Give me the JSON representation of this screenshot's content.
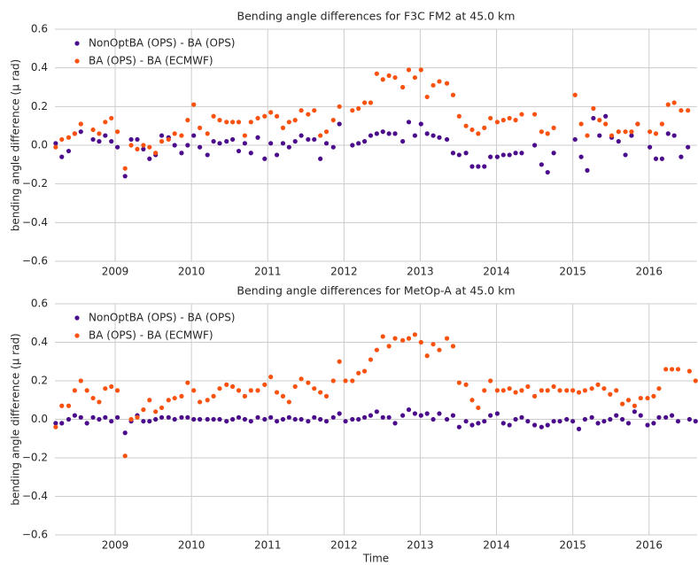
{
  "chart_data": [
    {
      "type": "scatter",
      "title": "Bending angle differences for F3C FM2 at 45.0 km",
      "ylabel": "bending angle difference (μ rad)",
      "xlim": [
        2008.21,
        2016.63
      ],
      "xticks": [
        2009,
        2010,
        2011,
        2012,
        2013,
        2014,
        2015,
        2016
      ],
      "ylim": [
        -0.6,
        0.6
      ],
      "yticks": [
        {
          "value": -0.6,
          "label": "−0.6"
        },
        {
          "value": -0.4,
          "label": "−0.4"
        },
        {
          "value": -0.2,
          "label": "−0.2"
        },
        {
          "value": 0,
          "label": "0.0"
        },
        0.2,
        0.4,
        0.6
      ],
      "grid": true,
      "legend": "upper left",
      "x": [
        2008.22,
        2008.3,
        2008.39,
        2008.47,
        2008.55,
        2008.71,
        2008.79,
        2008.87,
        2008.95,
        2009.03,
        2009.13,
        2009.21,
        2009.29,
        2009.37,
        2009.45,
        2009.53,
        2009.61,
        2009.7,
        2009.78,
        2009.87,
        2009.95,
        2010.03,
        2010.11,
        2010.21,
        2010.29,
        2010.37,
        2010.46,
        2010.54,
        2010.62,
        2010.7,
        2010.78,
        2010.87,
        2010.96,
        2011.04,
        2011.12,
        2011.2,
        2011.28,
        2011.36,
        2011.44,
        2011.53,
        2011.61,
        2011.69,
        2011.77,
        2011.86,
        2011.94,
        2012.11,
        2012.19,
        2012.27,
        2012.35,
        2012.43,
        2012.51,
        2012.59,
        2012.67,
        2012.77,
        2012.85,
        2012.93,
        2013.01,
        2013.09,
        2013.17,
        2013.25,
        2013.35,
        2013.43,
        2013.51,
        2013.6,
        2013.68,
        2013.76,
        2013.84,
        2013.92,
        2014.01,
        2014.09,
        2014.17,
        2014.25,
        2014.33,
        2014.5,
        2014.59,
        2014.67,
        2014.75,
        2015.03,
        2015.11,
        2015.19,
        2015.27,
        2015.35,
        2015.43,
        2015.51,
        2015.6,
        2015.69,
        2015.77,
        2015.85,
        2016.01,
        2016.09,
        2016.17,
        2016.25,
        2016.33,
        2016.42,
        2016.51
      ],
      "series": [
        {
          "name": "NonOptBA (OPS) - BA (OPS)",
          "color": "#4b0c8c",
          "values": [
            0.01,
            -0.06,
            -0.03,
            0.06,
            0.07,
            0.03,
            0.02,
            0.05,
            0.02,
            -0.01,
            -0.16,
            0.03,
            0.03,
            -0.02,
            -0.07,
            -0.05,
            0.05,
            0.04,
            0,
            -0.04,
            0,
            0.05,
            -0.01,
            -0.05,
            0.02,
            0.01,
            0.02,
            0.03,
            -0.03,
            0.01,
            -0.04,
            0.04,
            -0.07,
            0.01,
            -0.05,
            0.01,
            -0.01,
            0.02,
            0.05,
            0.03,
            0.03,
            -0.07,
            0.01,
            -0.01,
            0.11,
            0,
            0.01,
            0.02,
            0.05,
            0.06,
            0.07,
            0.06,
            0.06,
            0.02,
            0.12,
            0.05,
            0.11,
            0.06,
            0.05,
            0.04,
            0.03,
            -0.04,
            -0.05,
            -0.04,
            -0.11,
            -0.11,
            -0.11,
            -0.06,
            -0.06,
            -0.05,
            -0.05,
            -0.04,
            -0.04,
            0,
            -0.1,
            -0.14,
            -0.04,
            0.03,
            -0.06,
            -0.13,
            0.14,
            0.05,
            0.15,
            0.04,
            0.02,
            -0.05,
            0.05,
            0.11,
            -0.01,
            -0.07,
            -0.07,
            0.06,
            0.05,
            -0.06,
            -0.01
          ]
        },
        {
          "name": "BA (OPS) - BA (ECMWF)",
          "color": "#f9520f",
          "values": [
            -0.01,
            0.03,
            0.04,
            0.06,
            0.11,
            0.08,
            0.06,
            0.12,
            0.14,
            0.07,
            -0.12,
            0,
            -0.02,
            0,
            -0.01,
            -0.04,
            0.02,
            0.03,
            0.06,
            0.05,
            0.13,
            0.21,
            0.09,
            0.06,
            0.15,
            0.13,
            0.12,
            0.12,
            0.12,
            0.05,
            0.12,
            0.14,
            0.15,
            0.17,
            0.15,
            0.09,
            0.12,
            0.13,
            0.18,
            0.16,
            0.18,
            0.05,
            0.07,
            0.13,
            0.2,
            0.18,
            0.19,
            0.22,
            0.22,
            0.37,
            0.34,
            0.36,
            0.35,
            0.3,
            0.39,
            0.35,
            0.39,
            0.25,
            0.31,
            0.33,
            0.32,
            0.26,
            0.15,
            0.1,
            0.08,
            0.06,
            0.09,
            0.14,
            0.12,
            0.13,
            0.14,
            0.13,
            0.16,
            0.16,
            0.07,
            0.06,
            0.09,
            0.26,
            0.11,
            0.05,
            0.19,
            0.13,
            0.11,
            0.05,
            0.07,
            0.07,
            0.07,
            0.11,
            0.07,
            0.06,
            0.11,
            0.21,
            0.22,
            0.18,
            0.18
          ]
        }
      ]
    },
    {
      "type": "scatter",
      "title": "Bending angle differences for MetOp-A at 45.0 km",
      "ylabel": "bending angle difference (μ rad)",
      "xlabel": "Time",
      "xlim": [
        2008.21,
        2016.63
      ],
      "xticks": [
        2009,
        2010,
        2011,
        2012,
        2013,
        2014,
        2015,
        2016
      ],
      "ylim": [
        -0.6,
        0.6
      ],
      "yticks": [
        {
          "value": -0.6,
          "label": "−0.6"
        },
        {
          "value": -0.4,
          "label": "−0.4"
        },
        {
          "value": -0.2,
          "label": "−0.2"
        },
        {
          "value": 0,
          "label": "0.0"
        },
        0.2,
        0.4,
        0.6
      ],
      "grid": true,
      "legend": "upper left",
      "x": [
        2008.22,
        2008.3,
        2008.39,
        2008.47,
        2008.55,
        2008.63,
        2008.71,
        2008.79,
        2008.87,
        2008.95,
        2009.03,
        2009.13,
        2009.21,
        2009.29,
        2009.37,
        2009.45,
        2009.53,
        2009.61,
        2009.7,
        2009.78,
        2009.87,
        2009.95,
        2010.03,
        2010.11,
        2010.21,
        2010.29,
        2010.37,
        2010.46,
        2010.54,
        2010.62,
        2010.7,
        2010.78,
        2010.87,
        2010.96,
        2011.04,
        2011.12,
        2011.2,
        2011.28,
        2011.36,
        2011.44,
        2011.53,
        2011.61,
        2011.69,
        2011.77,
        2011.86,
        2011.94,
        2012.02,
        2012.11,
        2012.19,
        2012.27,
        2012.35,
        2012.43,
        2012.51,
        2012.59,
        2012.67,
        2012.77,
        2012.85,
        2012.93,
        2013.01,
        2013.09,
        2013.17,
        2013.25,
        2013.35,
        2013.43,
        2013.51,
        2013.6,
        2013.68,
        2013.76,
        2013.84,
        2013.92,
        2014.01,
        2014.09,
        2014.17,
        2014.25,
        2014.33,
        2014.41,
        2014.5,
        2014.59,
        2014.67,
        2014.75,
        2014.83,
        2014.92,
        2015.0,
        2015.08,
        2015.16,
        2015.25,
        2015.33,
        2015.41,
        2015.49,
        2015.57,
        2015.65,
        2015.73,
        2015.81,
        2015.89,
        2015.98,
        2016.06,
        2016.13,
        2016.22,
        2016.3,
        2016.38,
        2016.53,
        2016.61
      ],
      "series": [
        {
          "name": "NonOptBA (OPS) - BA (OPS)",
          "color": "#4b0c8c",
          "values": [
            -0.02,
            -0.02,
            0,
            0.02,
            0.01,
            -0.02,
            0.01,
            0,
            0.01,
            -0.01,
            0.01,
            -0.07,
            -0.01,
            0.02,
            -0.01,
            -0.01,
            0,
            0.01,
            0.01,
            0,
            0.01,
            0.01,
            0,
            0,
            0,
            0,
            0,
            -0.01,
            0,
            0.01,
            0,
            -0.01,
            0.01,
            0,
            0.01,
            -0.01,
            0,
            0.01,
            0,
            0,
            -0.01,
            0.01,
            0,
            -0.01,
            0.01,
            0.03,
            -0.01,
            0,
            0,
            0.01,
            0.02,
            0.04,
            0.01,
            0.01,
            -0.02,
            0.02,
            0.05,
            0.03,
            0.02,
            0.03,
            0,
            0.03,
            0,
            0.02,
            -0.04,
            -0.01,
            -0.03,
            -0.02,
            -0.01,
            0.02,
            0.03,
            -0.02,
            -0.03,
            0,
            0.01,
            -0.01,
            -0.03,
            -0.04,
            -0.03,
            -0.01,
            -0.01,
            0,
            -0.01,
            -0.05,
            0,
            0.01,
            -0.02,
            -0.01,
            0,
            0.02,
            0,
            -0.02,
            0.04,
            0.02,
            -0.03,
            -0.02,
            0.01,
            0.01,
            0.02,
            -0.01,
            0,
            -0.01
          ]
        },
        {
          "name": "BA (OPS) - BA (ECMWF)",
          "color": "#f9520f",
          "values": [
            -0.04,
            0.07,
            0.07,
            0.15,
            0.2,
            0.15,
            0.11,
            0.09,
            0.16,
            0.17,
            0.15,
            -0.19,
            0,
            0.01,
            0.05,
            0.1,
            0.04,
            0.06,
            0.1,
            0.11,
            0.12,
            0.19,
            0.15,
            0.09,
            0.1,
            0.12,
            0.16,
            0.18,
            0.17,
            0.15,
            0.12,
            0.15,
            0.15,
            0.18,
            0.22,
            0.14,
            0.12,
            0.09,
            0.17,
            0.21,
            0.19,
            0.16,
            0.14,
            0.12,
            0.2,
            0.3,
            0.2,
            0.2,
            0.24,
            0.25,
            0.31,
            0.36,
            0.43,
            0.38,
            0.42,
            0.41,
            0.42,
            0.44,
            0.4,
            0.33,
            0.39,
            0.36,
            0.42,
            0.38,
            0.19,
            0.18,
            0.1,
            0.06,
            0.15,
            0.2,
            0.15,
            0.15,
            0.16,
            0.14,
            0.15,
            0.17,
            0.12,
            0.15,
            0.15,
            0.17,
            0.15,
            0.15,
            0.15,
            0.14,
            0.15,
            0.16,
            0.18,
            0.16,
            0.13,
            0.15,
            0.08,
            0.1,
            0.07,
            0.11,
            0.11,
            0.12,
            0.16,
            0.26,
            0.26,
            0.26,
            0.25,
            0.2
          ]
        }
      ]
    }
  ]
}
